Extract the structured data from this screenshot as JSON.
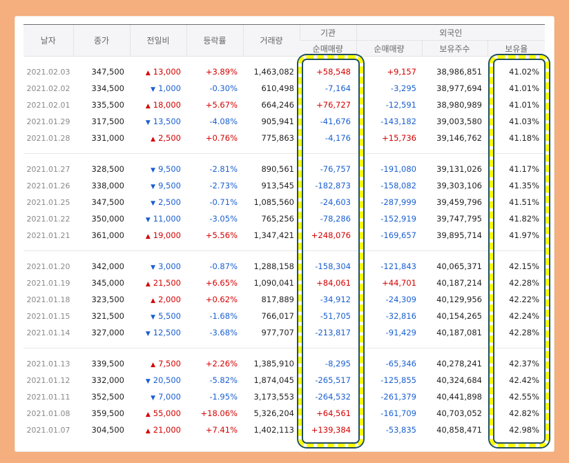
{
  "columns": {
    "date": "날자",
    "close": "종가",
    "change": "전일비",
    "rate": "등락률",
    "volume": "거래량",
    "inst_group": "기관",
    "inst_net": "순매매량",
    "foreign_group": "외국인",
    "foreign_net": "순매매량",
    "foreign_holdings": "보유주수",
    "foreign_ratio": "보유율"
  },
  "groups": [
    [
      {
        "date": "2021.02.03",
        "close": "347,500",
        "dir": "up",
        "change": "13,000",
        "rate": "+3.89%",
        "volume": "1,463,082",
        "inst": "+58,548",
        "foreign": "+9,157",
        "holdings": "38,986,851",
        "ratio": "41.02%"
      },
      {
        "date": "2021.02.02",
        "close": "334,500",
        "dir": "down",
        "change": "1,000",
        "rate": "-0.30%",
        "volume": "610,498",
        "inst": "-7,164",
        "foreign": "-3,295",
        "holdings": "38,977,694",
        "ratio": "41.01%"
      },
      {
        "date": "2021.02.01",
        "close": "335,500",
        "dir": "up",
        "change": "18,000",
        "rate": "+5.67%",
        "volume": "664,246",
        "inst": "+76,727",
        "foreign": "-12,591",
        "holdings": "38,980,989",
        "ratio": "41.01%"
      },
      {
        "date": "2021.01.29",
        "close": "317,500",
        "dir": "down",
        "change": "13,500",
        "rate": "-4.08%",
        "volume": "905,941",
        "inst": "-41,676",
        "foreign": "-143,182",
        "holdings": "39,003,580",
        "ratio": "41.03%"
      },
      {
        "date": "2021.01.28",
        "close": "331,000",
        "dir": "up",
        "change": "2,500",
        "rate": "+0.76%",
        "volume": "775,863",
        "inst": "-4,176",
        "foreign": "+15,736",
        "holdings": "39,146,762",
        "ratio": "41.18%"
      }
    ],
    [
      {
        "date": "2021.01.27",
        "close": "328,500",
        "dir": "down",
        "change": "9,500",
        "rate": "-2.81%",
        "volume": "890,561",
        "inst": "-76,757",
        "foreign": "-191,080",
        "holdings": "39,131,026",
        "ratio": "41.17%"
      },
      {
        "date": "2021.01.26",
        "close": "338,000",
        "dir": "down",
        "change": "9,500",
        "rate": "-2.73%",
        "volume": "913,545",
        "inst": "-182,873",
        "foreign": "-158,082",
        "holdings": "39,303,106",
        "ratio": "41.35%"
      },
      {
        "date": "2021.01.25",
        "close": "347,500",
        "dir": "down",
        "change": "2,500",
        "rate": "-0.71%",
        "volume": "1,085,560",
        "inst": "-24,603",
        "foreign": "-287,999",
        "holdings": "39,459,796",
        "ratio": "41.51%"
      },
      {
        "date": "2021.01.22",
        "close": "350,000",
        "dir": "down",
        "change": "11,000",
        "rate": "-3.05%",
        "volume": "765,256",
        "inst": "-78,286",
        "foreign": "-152,919",
        "holdings": "39,747,795",
        "ratio": "41.82%"
      },
      {
        "date": "2021.01.21",
        "close": "361,000",
        "dir": "up",
        "change": "19,000",
        "rate": "+5.56%",
        "volume": "1,347,421",
        "inst": "+248,076",
        "foreign": "-169,657",
        "holdings": "39,895,714",
        "ratio": "41.97%"
      }
    ],
    [
      {
        "date": "2021.01.20",
        "close": "342,000",
        "dir": "down",
        "change": "3,000",
        "rate": "-0.87%",
        "volume": "1,288,158",
        "inst": "-158,304",
        "foreign": "-121,843",
        "holdings": "40,065,371",
        "ratio": "42.15%"
      },
      {
        "date": "2021.01.19",
        "close": "345,000",
        "dir": "up",
        "change": "21,500",
        "rate": "+6.65%",
        "volume": "1,090,041",
        "inst": "+84,061",
        "foreign": "+44,701",
        "holdings": "40,187,214",
        "ratio": "42.28%"
      },
      {
        "date": "2021.01.18",
        "close": "323,500",
        "dir": "up",
        "change": "2,000",
        "rate": "+0.62%",
        "volume": "817,889",
        "inst": "-34,912",
        "foreign": "-24,309",
        "holdings": "40,129,956",
        "ratio": "42.22%"
      },
      {
        "date": "2021.01.15",
        "close": "321,500",
        "dir": "down",
        "change": "5,500",
        "rate": "-1.68%",
        "volume": "766,017",
        "inst": "-51,705",
        "foreign": "-32,816",
        "holdings": "40,154,265",
        "ratio": "42.24%"
      },
      {
        "date": "2021.01.14",
        "close": "327,000",
        "dir": "down",
        "change": "12,500",
        "rate": "-3.68%",
        "volume": "977,707",
        "inst": "-213,817",
        "foreign": "-91,429",
        "holdings": "40,187,081",
        "ratio": "42.28%"
      }
    ],
    [
      {
        "date": "2021.01.13",
        "close": "339,500",
        "dir": "up",
        "change": "7,500",
        "rate": "+2.26%",
        "volume": "1,385,910",
        "inst": "-8,295",
        "foreign": "-65,346",
        "holdings": "40,278,241",
        "ratio": "42.37%"
      },
      {
        "date": "2021.01.12",
        "close": "332,000",
        "dir": "down",
        "change": "20,500",
        "rate": "-5.82%",
        "volume": "1,874,045",
        "inst": "-265,517",
        "foreign": "-125,855",
        "holdings": "40,324,684",
        "ratio": "42.42%"
      },
      {
        "date": "2021.01.11",
        "close": "352,500",
        "dir": "down",
        "change": "7,000",
        "rate": "-1.95%",
        "volume": "3,173,553",
        "inst": "-264,532",
        "foreign": "-261,379",
        "holdings": "40,441,898",
        "ratio": "42.55%"
      },
      {
        "date": "2021.01.08",
        "close": "359,500",
        "dir": "up",
        "change": "55,000",
        "rate": "+18.06%",
        "volume": "5,326,204",
        "inst": "+64,561",
        "foreign": "-161,709",
        "holdings": "40,703,052",
        "ratio": "42.82%"
      },
      {
        "date": "2021.01.07",
        "close": "304,500",
        "dir": "up",
        "change": "21,000",
        "rate": "+7.41%",
        "volume": "1,402,113",
        "inst": "+139,384",
        "foreign": "-53,835",
        "holdings": "40,858,471",
        "ratio": "42.98%"
      }
    ]
  ],
  "colors": {
    "up": "#d50000",
    "down": "#1a5fd1",
    "highlight_dash": "#ffff00",
    "highlight_outline": "#1f4e5e",
    "frame": "#f5ae7d"
  },
  "icons": {
    "up": "triangle-up-icon",
    "down": "triangle-down-icon"
  }
}
